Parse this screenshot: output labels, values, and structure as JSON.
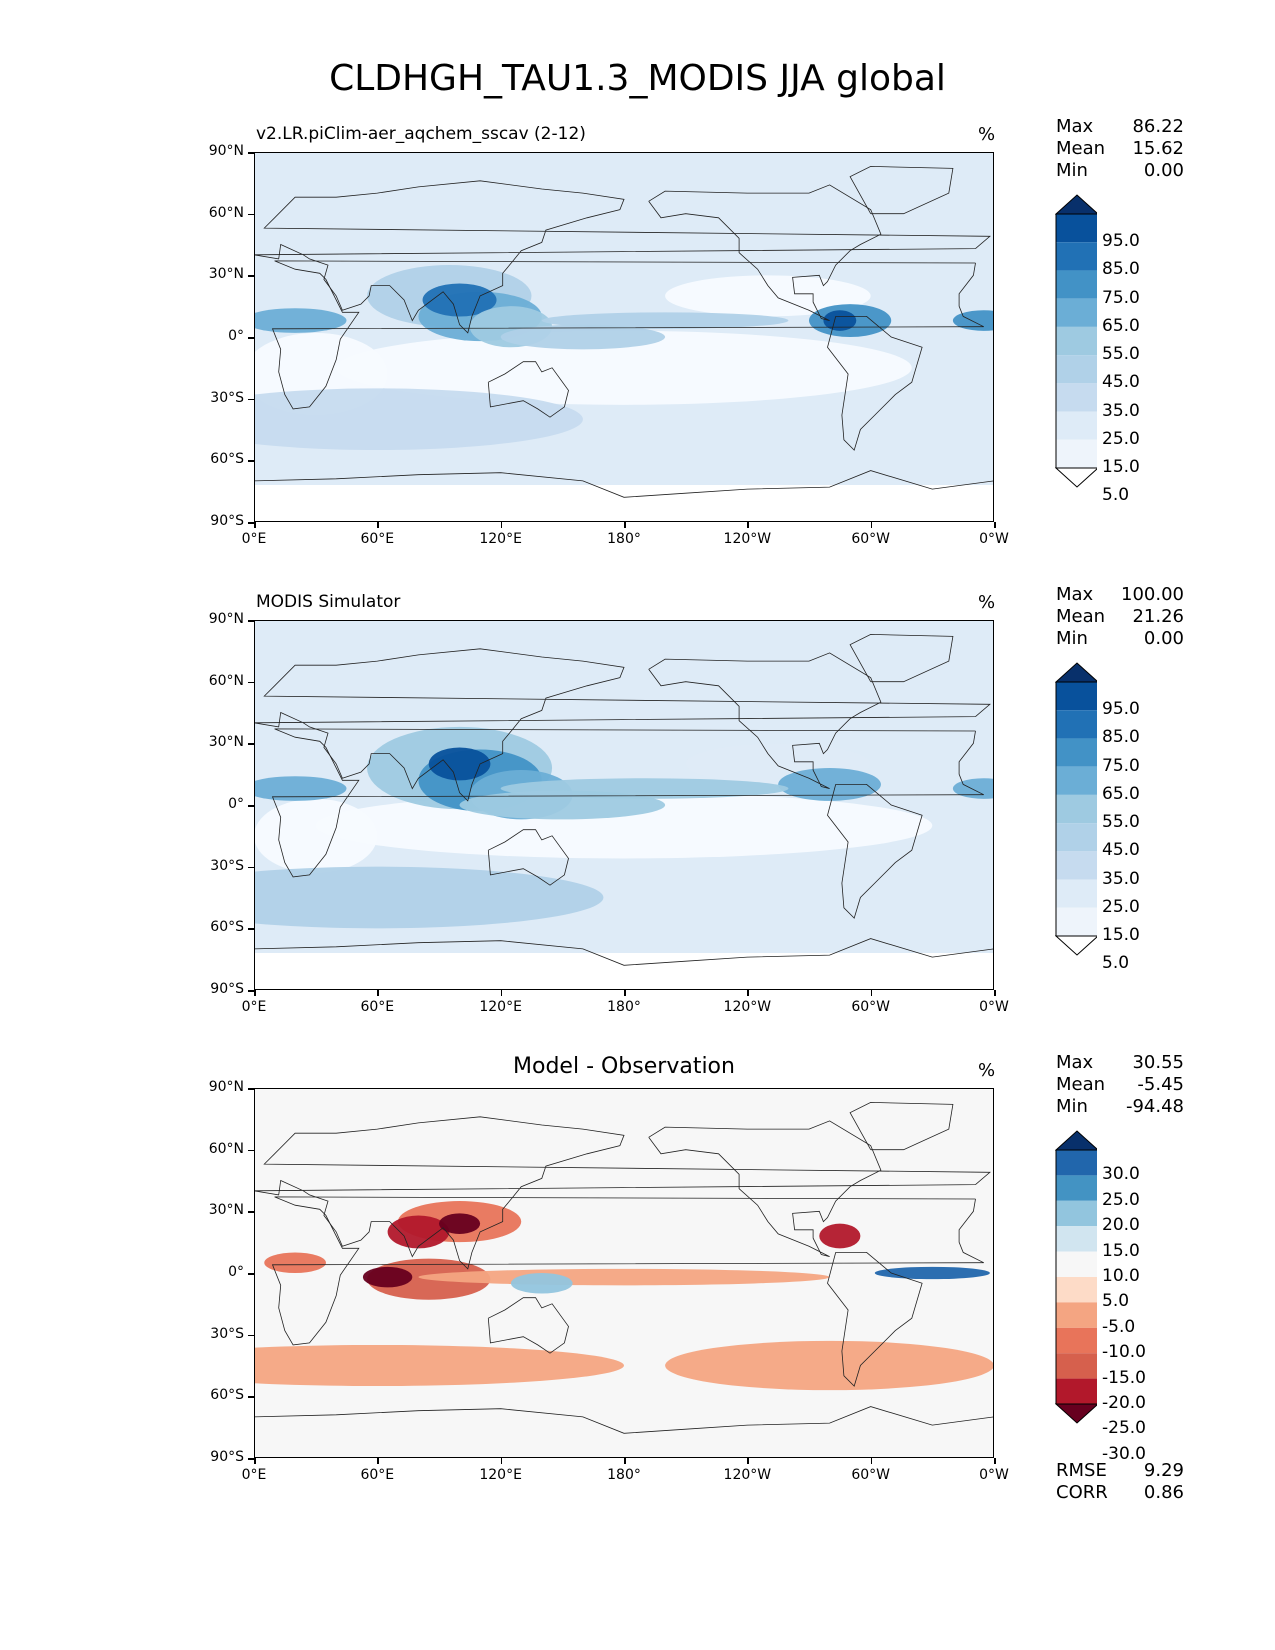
{
  "title": "CLDHGH_TAU1.3_MODIS JJA global",
  "lat_ticks": [
    "90°N",
    "60°N",
    "30°N",
    "0°",
    "30°S",
    "60°S",
    "90°S"
  ],
  "lon_ticks": [
    "0°E",
    "60°E",
    "120°E",
    "180°",
    "120°W",
    "60°W",
    "0°W"
  ],
  "chart_data": [
    {
      "type": "heatmap",
      "label": "v2.LR.piClim-aer_aqchem_sscav (2-12)",
      "unit": "%",
      "stats": {
        "max_label": "Max",
        "max": "86.22",
        "mean_label": "Mean",
        "mean": "15.62",
        "min_label": "Min",
        "min": "0.00"
      },
      "colorbar_levels": [
        "95.0",
        "85.0",
        "75.0",
        "65.0",
        "55.0",
        "45.0",
        "35.0",
        "25.0",
        "15.0",
        "5.0"
      ],
      "xlim": [
        0,
        360
      ],
      "ylim": [
        -90,
        90
      ]
    },
    {
      "type": "heatmap",
      "label": "MODIS Simulator",
      "unit": "%",
      "stats": {
        "max_label": "Max",
        "max": "100.00",
        "mean_label": "Mean",
        "mean": "21.26",
        "min_label": "Min",
        "min": "0.00"
      },
      "colorbar_levels": [
        "95.0",
        "85.0",
        "75.0",
        "65.0",
        "55.0",
        "45.0",
        "35.0",
        "25.0",
        "15.0",
        "5.0"
      ],
      "xlim": [
        0,
        360
      ],
      "ylim": [
        -90,
        90
      ]
    },
    {
      "type": "heatmap",
      "label": "Model - Observation",
      "unit": "%",
      "stats": {
        "max_label": "Max",
        "max": "30.55",
        "mean_label": "Mean",
        "mean": "-5.45",
        "min_label": "Min",
        "min": "-94.48"
      },
      "colorbar_levels": [
        "30.0",
        "25.0",
        "20.0",
        "15.0",
        "10.0",
        "5.0",
        "-5.0",
        "-10.0",
        "-15.0",
        "-20.0",
        "-25.0",
        "-30.0"
      ],
      "metrics": {
        "rmse_label": "RMSE",
        "rmse": "9.29",
        "corr_label": "CORR",
        "corr": "0.86"
      },
      "xlim": [
        0,
        360
      ],
      "ylim": [
        -90,
        90
      ]
    }
  ],
  "colors": {
    "blues": [
      "#f7fbff",
      "#deebf7",
      "#c6dbef",
      "#b0d1e8",
      "#9ecae1",
      "#6baed6",
      "#4292c6",
      "#2171b5",
      "#08519c",
      "#08306b"
    ],
    "diff": [
      "#08306b",
      "#2166ac",
      "#4393c3",
      "#92c5de",
      "#d1e5f0",
      "#f7f7f7",
      "#fddbc7",
      "#f4a582",
      "#e8745a",
      "#d6604d",
      "#b2182b",
      "#67001f"
    ]
  }
}
